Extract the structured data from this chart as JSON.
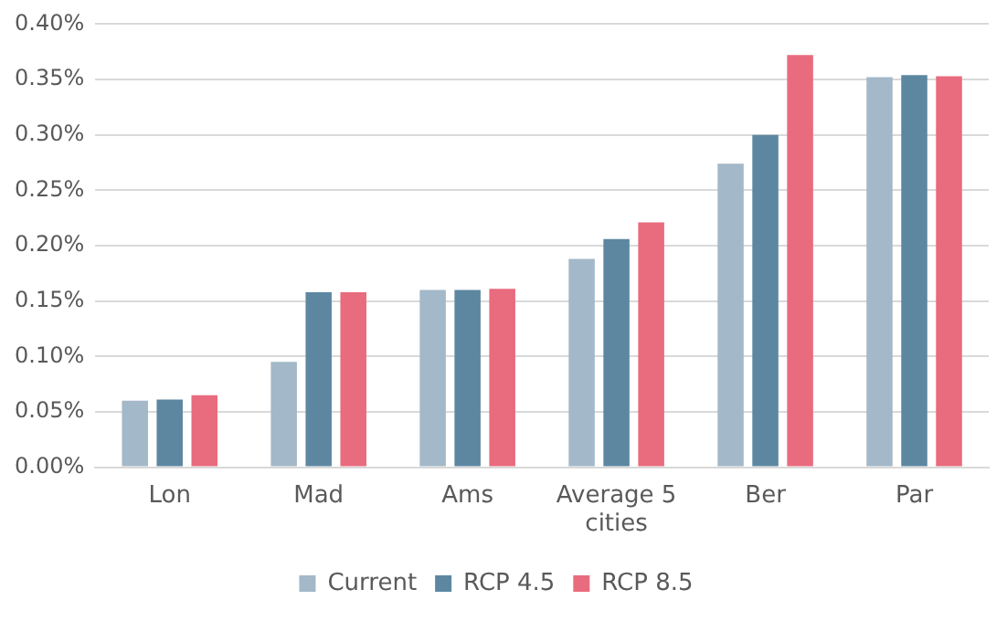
{
  "chart_data": {
    "type": "bar",
    "categories": [
      "Lon",
      "Mad",
      "Ams",
      "Average 5 cities",
      "Ber",
      "Par"
    ],
    "series": [
      {
        "name": "Current",
        "color": "#a3b8c8",
        "values": [
          0.06,
          0.095,
          0.16,
          0.188,
          0.274,
          0.352
        ]
      },
      {
        "name": "RCP 4.5",
        "color": "#5d87a1",
        "values": [
          0.061,
          0.158,
          0.16,
          0.206,
          0.3,
          0.354
        ]
      },
      {
        "name": "RCP 8.5",
        "color": "#e96b7e",
        "values": [
          0.065,
          0.158,
          0.161,
          0.221,
          0.372,
          0.353
        ]
      }
    ],
    "ylim": [
      0,
      0.4
    ],
    "yticks": [
      {
        "value": 0,
        "label": "0.00%"
      },
      {
        "value": 0.05,
        "label": "0.05%"
      },
      {
        "value": 0.1,
        "label": "0.10%"
      },
      {
        "value": 0.15,
        "label": "0.15%"
      },
      {
        "value": 0.2,
        "label": "0.20%"
      },
      {
        "value": 0.25,
        "label": "0.25%"
      },
      {
        "value": 0.3,
        "label": "0.30%"
      },
      {
        "value": 0.35,
        "label": "0.35%"
      },
      {
        "value": 0.4,
        "label": "0.40%"
      }
    ],
    "grid": "y",
    "legend": "bottom"
  }
}
